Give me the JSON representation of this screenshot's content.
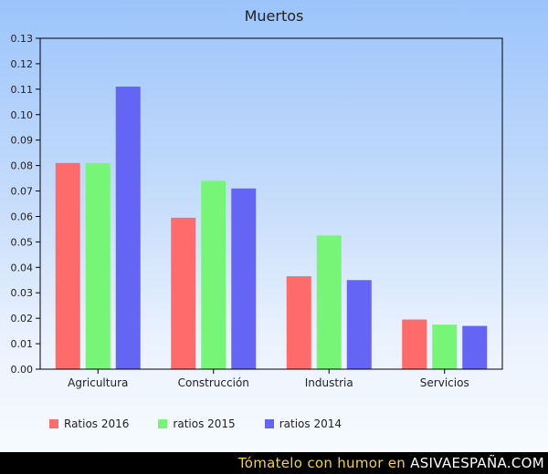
{
  "chart_data": {
    "type": "bar",
    "title": "Muertos",
    "categories": [
      "Agricultura",
      "Construcción",
      "Industria",
      "Servicios"
    ],
    "series": [
      {
        "name": "Ratios 2016",
        "color": "#ff6a6a",
        "values": [
          0.081,
          0.0595,
          0.0365,
          0.0195
        ]
      },
      {
        "name": "ratios 2015",
        "color": "#77f577",
        "values": [
          0.081,
          0.074,
          0.0525,
          0.0175
        ]
      },
      {
        "name": "ratios 2014",
        "color": "#6464f5",
        "values": [
          0.111,
          0.071,
          0.035,
          0.017
        ]
      }
    ],
    "ylim": [
      0,
      0.13
    ],
    "yticks": [
      "0.00",
      "0.01",
      "0.02",
      "0.03",
      "0.04",
      "0.05",
      "0.06",
      "0.07",
      "0.08",
      "0.09",
      "0.10",
      "0.11",
      "0.12",
      "0.13"
    ],
    "grid": false,
    "legend": "bottom"
  },
  "footer": {
    "text": "Tómatelo con humor en",
    "brand": "ASIVAESPAÑA.COM"
  }
}
